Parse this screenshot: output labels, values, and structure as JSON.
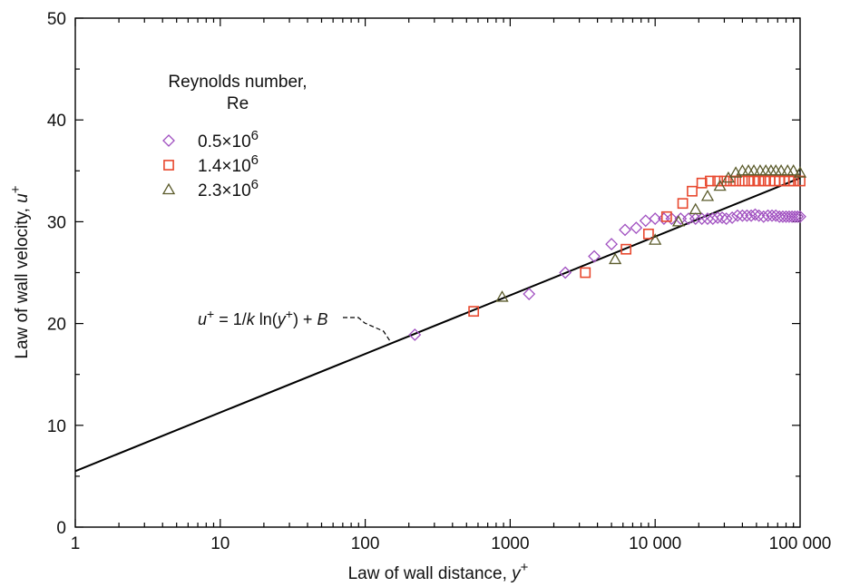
{
  "chart_data": {
    "type": "scatter",
    "title": "",
    "x_scale": "log",
    "xlim": [
      1,
      100000
    ],
    "ylim": [
      0,
      50
    ],
    "grid": false,
    "legend_placement": "top-left",
    "xlabel": {
      "text": "Law of wall distance, ",
      "var": "y",
      "sup": "+"
    },
    "ylabel": {
      "text": "Law of wall velocity, ",
      "var": "u",
      "sup": "+"
    },
    "x_ticks": [
      {
        "value": 1,
        "label": "1"
      },
      {
        "value": 10,
        "label": "10"
      },
      {
        "value": 100,
        "label": "100"
      },
      {
        "value": 1000,
        "label": "1000"
      },
      {
        "value": 10000,
        "label": "10 000"
      },
      {
        "value": 100000,
        "label": "100 000"
      }
    ],
    "y_ticks": [
      {
        "value": 0,
        "label": "0"
      },
      {
        "value": 10,
        "label": "10"
      },
      {
        "value": 20,
        "label": "20"
      },
      {
        "value": 30,
        "label": "30"
      },
      {
        "value": 40,
        "label": "40"
      },
      {
        "value": 50,
        "label": "50"
      }
    ],
    "legend": {
      "title_line1": "Reynolds number,",
      "title_line2": "Re"
    },
    "line": {
      "x": [
        1,
        100000
      ],
      "y": [
        5.5,
        34.3
      ],
      "color": "#000000"
    },
    "annotation": {
      "u": "u",
      "plus1": "+",
      "eq": " = 1/",
      "k": "k",
      "ln": " ln(",
      "y": "y",
      "plus2": "+",
      "tail": ") + ",
      "B": "B",
      "x": 150,
      "y_val": 18
    },
    "series": [
      {
        "name": "0.5×10",
        "exp": "6",
        "marker": "diamond",
        "color": "#a04fc0",
        "points": [
          [
            220,
            18.9
          ],
          [
            1350,
            22.9
          ],
          [
            2400,
            25.0
          ],
          [
            3800,
            26.6
          ],
          [
            5000,
            27.8
          ],
          [
            6200,
            29.2
          ],
          [
            7400,
            29.4
          ],
          [
            8600,
            30.1
          ],
          [
            10000,
            30.3
          ],
          [
            11500,
            30.3
          ],
          [
            13000,
            30.3
          ],
          [
            15000,
            30.3
          ],
          [
            17000,
            30.3
          ],
          [
            19000,
            30.3
          ],
          [
            21000,
            30.3
          ],
          [
            23000,
            30.3
          ],
          [
            25000,
            30.3
          ],
          [
            27000,
            30.4
          ],
          [
            29000,
            30.4
          ],
          [
            31000,
            30.3
          ],
          [
            34000,
            30.4
          ],
          [
            37000,
            30.6
          ],
          [
            40000,
            30.6
          ],
          [
            43000,
            30.6
          ],
          [
            46000,
            30.6
          ],
          [
            49000,
            30.7
          ],
          [
            52000,
            30.6
          ],
          [
            56000,
            30.5
          ],
          [
            60000,
            30.6
          ],
          [
            64000,
            30.6
          ],
          [
            68000,
            30.6
          ],
          [
            72000,
            30.5
          ],
          [
            76000,
            30.5
          ],
          [
            80000,
            30.5
          ],
          [
            84000,
            30.5
          ],
          [
            88000,
            30.5
          ],
          [
            92000,
            30.5
          ],
          [
            96000,
            30.5
          ],
          [
            100000,
            30.5
          ]
        ]
      },
      {
        "name": "1.4×10",
        "exp": "6",
        "marker": "square",
        "color": "#e8482e",
        "points": [
          [
            560,
            21.2
          ],
          [
            3300,
            25.0
          ],
          [
            6300,
            27.3
          ],
          [
            9000,
            28.8
          ],
          [
            12000,
            30.5
          ],
          [
            15500,
            31.8
          ],
          [
            18000,
            33.0
          ],
          [
            21000,
            33.8
          ],
          [
            24000,
            34.0
          ],
          [
            27000,
            34.0
          ],
          [
            30000,
            34.0
          ],
          [
            33000,
            34.0
          ],
          [
            36000,
            34.0
          ],
          [
            40000,
            34.0
          ],
          [
            44000,
            34.0
          ],
          [
            48000,
            34.0
          ],
          [
            52000,
            34.0
          ],
          [
            57000,
            34.0
          ],
          [
            62000,
            34.0
          ],
          [
            67000,
            34.0
          ],
          [
            72000,
            34.0
          ],
          [
            78000,
            34.0
          ],
          [
            84000,
            34.0
          ],
          [
            90000,
            34.0
          ],
          [
            100000,
            34.0
          ]
        ]
      },
      {
        "name": "2.3×10",
        "exp": "6",
        "marker": "triangle",
        "color": "#5a5a2a",
        "points": [
          [
            880,
            22.6
          ],
          [
            5300,
            26.3
          ],
          [
            10000,
            28.2
          ],
          [
            14500,
            30.0
          ],
          [
            19000,
            31.2
          ],
          [
            23000,
            32.5
          ],
          [
            28000,
            33.5
          ],
          [
            32000,
            34.3
          ],
          [
            36000,
            34.8
          ],
          [
            40000,
            35.0
          ],
          [
            44000,
            35.0
          ],
          [
            48000,
            35.0
          ],
          [
            53000,
            35.0
          ],
          [
            58000,
            35.0
          ],
          [
            63000,
            35.0
          ],
          [
            68000,
            35.0
          ],
          [
            74000,
            35.0
          ],
          [
            82000,
            35.0
          ],
          [
            90000,
            35.0
          ],
          [
            100000,
            34.8
          ]
        ]
      }
    ]
  }
}
